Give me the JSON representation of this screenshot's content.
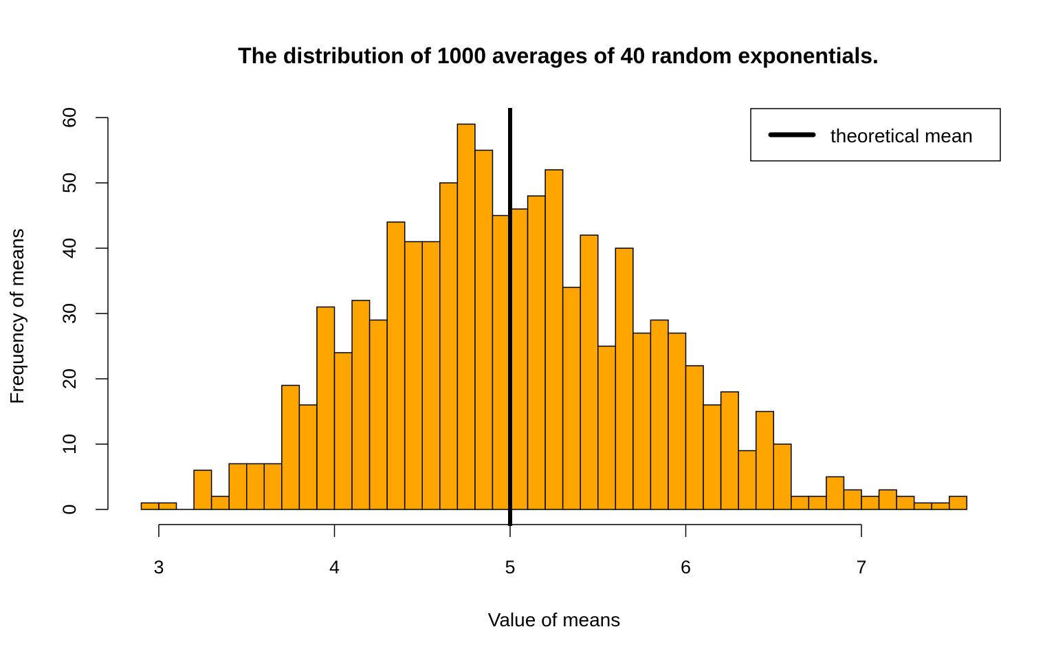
{
  "chart_data": {
    "type": "bar",
    "title": "The distribution of 1000 averages of 40 random exponentials.",
    "xlabel": "Value of means",
    "ylabel": "Frequency of means",
    "bins": {
      "start": 2.9,
      "width": 0.1,
      "counts": [
        1,
        1,
        0,
        6,
        2,
        7,
        7,
        7,
        19,
        16,
        31,
        24,
        32,
        29,
        44,
        41,
        41,
        50,
        59,
        55,
        45,
        46,
        48,
        52,
        34,
        42,
        25,
        40,
        27,
        29,
        27,
        22,
        16,
        18,
        9,
        15,
        10,
        2,
        2,
        5,
        3,
        2,
        3,
        2,
        1,
        1,
        2
      ]
    },
    "xlim": [
      3,
      7
    ],
    "ylim": [
      0,
      60
    ],
    "x_ticks": [
      3,
      4,
      5,
      6,
      7
    ],
    "y_ticks": [
      0,
      10,
      20,
      30,
      40,
      50,
      60
    ],
    "bar_color": "#FFA500",
    "bar_edge_color": "#000000",
    "vline": {
      "x": 5,
      "color": "#000000"
    },
    "legend": {
      "position": "top-right",
      "entries": [
        {
          "label": "theoretical mean",
          "color": "#000000"
        }
      ]
    },
    "grid": false
  }
}
